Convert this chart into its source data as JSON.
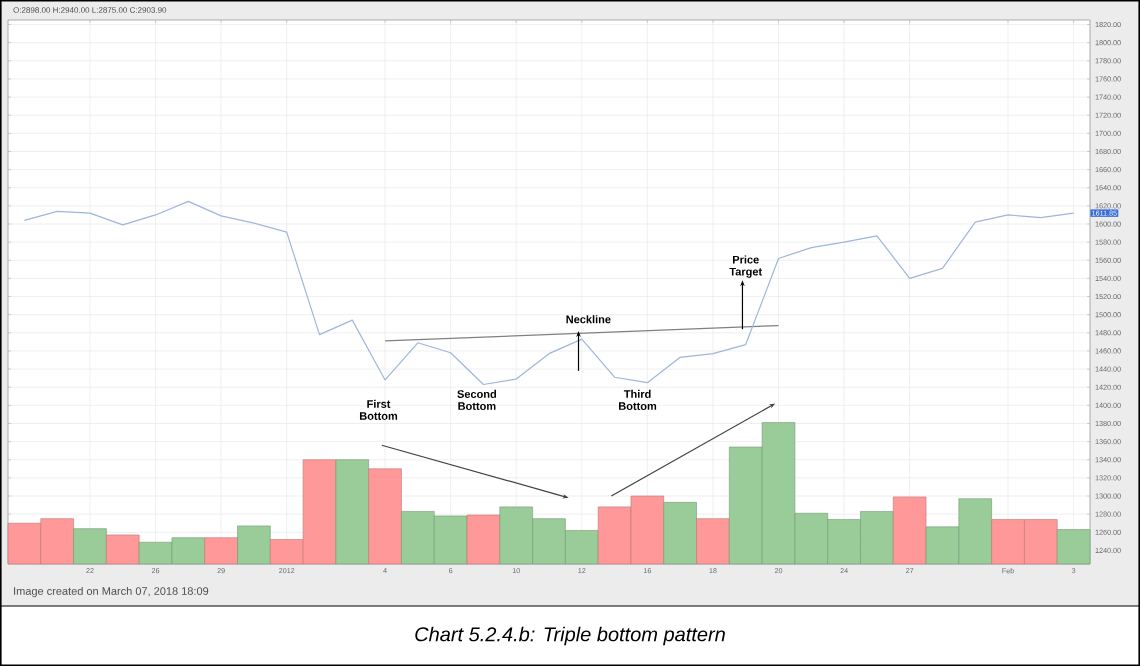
{
  "chart_data": {
    "type": "line",
    "title": "Chart 5.2.4.b: Triple bottom pattern",
    "subtitle": "O:2898.00 H:2940.00 L:2875.00 C:2903.90",
    "categories": [
      null,
      null,
      "22",
      null,
      "26",
      null,
      "29",
      null,
      "2012",
      null,
      null,
      "4",
      null,
      "6",
      null,
      "10",
      null,
      "12",
      null,
      "16",
      null,
      "18",
      null,
      "20",
      null,
      "24",
      null,
      "27",
      null,
      null,
      "Feb",
      null,
      "3"
    ],
    "series": [
      {
        "type": "bar",
        "colors": [
          "#ff9999",
          "#ff9999",
          "#99cc99",
          "#ff9999",
          "#99cc99",
          "#99cc99",
          "#ff9999",
          "#99cc99",
          "#ff9999",
          "#ff9999",
          "#99cc99",
          "#ff9999",
          "#99cc99",
          "#99cc99",
          "#ff9999",
          "#99cc99",
          "#99cc99",
          "#99cc99",
          "#ff9999",
          "#ff9999",
          "#99cc99",
          "#ff9999",
          "#99cc99",
          "#99cc99",
          "#99cc99",
          "#99cc99",
          "#99cc99",
          "#ff9999",
          "#99cc99",
          "#99cc99",
          "#ff9999",
          "#ff9999",
          "#99cc99"
        ],
        "values": [
          1270,
          1275,
          1264,
          1257,
          1249,
          1254,
          1254,
          1267,
          1252,
          1340,
          1340,
          1330,
          1283,
          1278,
          1279,
          1288,
          1275,
          1262,
          1288,
          1300,
          1293,
          1275,
          1354,
          1381,
          1281,
          1274,
          1283,
          1299,
          1266,
          1297,
          1274,
          1274,
          1263
        ]
      },
      {
        "color": "#808080",
        "x": [
          "4",
          "20"
        ],
        "values": [
          1471,
          1488
        ]
      },
      {
        "color": "#9fb5de",
        "values": [
          1604,
          1614,
          1612,
          1599,
          1610,
          1625,
          1609,
          1601,
          1591,
          1478,
          1494,
          1428,
          1469,
          1458,
          1423,
          1429,
          1457,
          1473,
          1431,
          1425,
          1453,
          1457,
          1467,
          1562,
          1574,
          1580,
          1587,
          1540,
          1551,
          1602,
          1610,
          1607,
          1612
        ]
      }
    ],
    "ylim": [
      1225,
      1825
    ],
    "yticks": [
      {
        "value": 1240,
        "label": "1240.00"
      },
      {
        "value": 1260,
        "label": "1260.00"
      },
      {
        "value": 1280,
        "label": "1280.00"
      },
      {
        "value": 1300,
        "label": "1300.00"
      },
      {
        "value": 1320,
        "label": "1320.00"
      },
      {
        "value": 1340,
        "label": "1340.00"
      },
      {
        "value": 1360,
        "label": "1360.00"
      },
      {
        "value": 1380,
        "label": "1380.00"
      },
      {
        "value": 1400,
        "label": "1400.00"
      },
      {
        "value": 1420,
        "label": "1420.00"
      },
      {
        "value": 1440,
        "label": "1440.00"
      },
      {
        "value": 1460,
        "label": "1460.00"
      },
      {
        "value": 1480,
        "label": "1480.00"
      },
      {
        "value": 1500,
        "label": "1500.00"
      },
      {
        "value": 1520,
        "label": "1520.00"
      },
      {
        "value": 1540,
        "label": "1540.00"
      },
      {
        "value": 1560,
        "label": "1560.00"
      },
      {
        "value": 1580,
        "label": "1580.00"
      },
      {
        "value": 1600,
        "label": "1600.00"
      },
      {
        "value": 1620,
        "label": "1620.00"
      },
      {
        "value": 1640,
        "label": "1640.00"
      },
      {
        "value": 1660,
        "label": "1660.00"
      },
      {
        "value": 1680,
        "label": "1680.00"
      },
      {
        "value": 1700,
        "label": "1700.00"
      },
      {
        "value": 1720,
        "label": "1720.00"
      },
      {
        "value": 1740,
        "label": "1740.00"
      },
      {
        "value": 1760,
        "label": "1760.00"
      },
      {
        "value": 1780,
        "label": "1780.00"
      },
      {
        "value": 1800,
        "label": "1800.00"
      },
      {
        "value": 1820,
        "label": "1820.00"
      }
    ],
    "grid": true,
    "annotations": [
      "First Bottom",
      "Second Bottom",
      "Third Bottom",
      "Neckline",
      "Price Target",
      "1611.85",
      "Image created on March 07, 2018 18:09"
    ]
  }
}
